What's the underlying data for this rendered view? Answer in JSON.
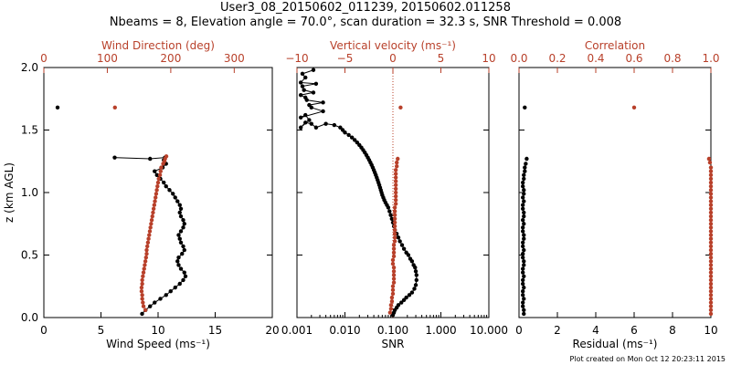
{
  "title": {
    "line1": "User3_08_20150602_011239, 20150602.011258",
    "line2": "Nbeams = 8, Elevation angle = 70.0°, scan duration = 32.3 s, SNR Threshold = 0.008"
  },
  "footer": "Plot created on Mon Oct 12 20:23:11 2015",
  "colors": {
    "red": "#b8402a",
    "black": "#000000"
  },
  "chart_data": [
    {
      "type": "line",
      "ylabel": "z (km AGL)",
      "ylim": [
        0,
        2.0
      ],
      "yticks": [
        "0.0",
        "0.5",
        "1.0",
        "1.5",
        "2.0"
      ],
      "yticks_values": [
        0,
        0.5,
        1.0,
        1.5,
        2.0
      ],
      "bottom_axis": {
        "label": "Wind Speed (ms⁻¹)",
        "range": [
          0,
          20
        ],
        "ticks": [
          "0",
          "5",
          "10",
          "15",
          "20"
        ],
        "tick_values": [
          0,
          5,
          10,
          15,
          20
        ]
      },
      "top_axis": {
        "label": "Wind Direction (deg)",
        "range": [
          0,
          360
        ],
        "ticks": [
          "0",
          "100",
          "200",
          "300"
        ],
        "tick_values": [
          0,
          100,
          200,
          300
        ]
      },
      "series": [
        {
          "axis": "bottom",
          "color": "black",
          "line": true,
          "x": [
            8.6,
            8.9,
            9.3,
            9.7,
            10.2,
            10.7,
            11.1,
            11.5,
            11.9,
            12.2,
            12.4,
            12.3,
            12.0,
            11.8,
            11.7,
            11.8,
            12.1,
            12.3,
            12.2,
            12.0,
            11.9,
            11.8,
            12.0,
            12.2,
            12.3,
            12.2,
            12.0,
            11.9,
            12.0,
            11.9,
            11.7,
            11.5,
            11.3,
            11.0,
            10.7,
            10.5,
            10.2,
            9.9,
            9.7,
            10.4,
            10.7,
            10.5,
            10.6,
            9.3,
            6.2
          ],
          "y": [
            0.03,
            0.06,
            0.09,
            0.12,
            0.15,
            0.18,
            0.21,
            0.24,
            0.27,
            0.3,
            0.33,
            0.36,
            0.39,
            0.42,
            0.45,
            0.48,
            0.51,
            0.54,
            0.57,
            0.6,
            0.63,
            0.66,
            0.69,
            0.72,
            0.75,
            0.78,
            0.81,
            0.84,
            0.87,
            0.9,
            0.93,
            0.96,
            0.99,
            1.02,
            1.05,
            1.08,
            1.11,
            1.14,
            1.17,
            1.2,
            1.23,
            1.26,
            1.28,
            1.27,
            1.28
          ]
        },
        {
          "axis": "bottom",
          "color": "black",
          "line": false,
          "x": [
            1.2
          ],
          "y": [
            1.68
          ]
        },
        {
          "axis": "top",
          "color": "red",
          "line": false,
          "x": [
            160,
            157,
            156,
            155,
            155,
            154,
            154,
            155,
            155,
            156,
            157,
            158,
            159,
            160,
            161,
            162,
            162,
            163,
            164,
            165,
            166,
            167,
            168,
            169,
            170,
            171,
            172,
            173,
            174,
            175,
            176,
            177,
            178,
            179,
            180,
            181,
            183,
            184,
            185,
            188,
            190,
            191,
            193
          ],
          "y": [
            0.06,
            0.09,
            0.12,
            0.15,
            0.18,
            0.21,
            0.24,
            0.27,
            0.3,
            0.33,
            0.36,
            0.39,
            0.42,
            0.45,
            0.48,
            0.51,
            0.54,
            0.57,
            0.6,
            0.63,
            0.66,
            0.69,
            0.72,
            0.75,
            0.78,
            0.81,
            0.84,
            0.87,
            0.9,
            0.93,
            0.96,
            0.99,
            1.02,
            1.05,
            1.08,
            1.11,
            1.14,
            1.17,
            1.2,
            1.23,
            1.25,
            1.27,
            1.29
          ]
        },
        {
          "axis": "top",
          "color": "red",
          "line": false,
          "x": [
            112
          ],
          "y": [
            1.68
          ]
        }
      ]
    },
    {
      "type": "line",
      "ylim": [
        0,
        2.0
      ],
      "bottom_axis": {
        "label": "SNR",
        "range": [
          0.001,
          10
        ],
        "scale": "log",
        "ticks": [
          "0.001",
          "0.010",
          "0.100",
          "1.000",
          "10.000"
        ],
        "tick_values": [
          0.001,
          0.01,
          0.1,
          1,
          10
        ]
      },
      "top_axis": {
        "label": "Vertical velocity (ms⁻¹)",
        "range": [
          -10,
          10
        ],
        "ticks": [
          "−10",
          "−5",
          "0",
          "5",
          "10"
        ],
        "tick_values": [
          -10,
          -5,
          0,
          5,
          10
        ]
      },
      "zero_line": {
        "axis": "top",
        "value": 0,
        "style": "dotted",
        "color": "red"
      },
      "series": [
        {
          "axis": "bottom",
          "color": "black",
          "line": true,
          "x": [
            0.1,
            0.105,
            0.11,
            0.12,
            0.13,
            0.15,
            0.17,
            0.19,
            0.22,
            0.25,
            0.28,
            0.3,
            0.31,
            0.31,
            0.3,
            0.29,
            0.27,
            0.25,
            0.23,
            0.21,
            0.19,
            0.17,
            0.155,
            0.14,
            0.13,
            0.12,
            0.11,
            0.105,
            0.1,
            0.095,
            0.09,
            0.085,
            0.08,
            0.075,
            0.07,
            0.066,
            0.063,
            0.06,
            0.058,
            0.056,
            0.054,
            0.052,
            0.05,
            0.048,
            0.046,
            0.044,
            0.042,
            0.04,
            0.038,
            0.036,
            0.034,
            0.032,
            0.03,
            0.028,
            0.026,
            0.024,
            0.022,
            0.02,
            0.018,
            0.016,
            0.014,
            0.012,
            0.01,
            0.009,
            0.008,
            0.006,
            0.004,
            0.0025,
            0.002,
            0.0015,
            0.0012,
            0.0018,
            0.0015,
            0.0012,
            0.0035,
            0.002,
            0.0018,
            0.0035,
            0.0016,
            0.0015,
            0.0012,
            0.0022,
            0.0014,
            0.0013,
            0.0025,
            0.0012,
            0.0015,
            0.0013,
            0.0022
          ],
          "y": [
            0.02,
            0.04,
            0.06,
            0.08,
            0.1,
            0.12,
            0.14,
            0.16,
            0.18,
            0.2,
            0.23,
            0.26,
            0.3,
            0.34,
            0.37,
            0.4,
            0.42,
            0.45,
            0.47,
            0.5,
            0.52,
            0.55,
            0.58,
            0.61,
            0.64,
            0.67,
            0.7,
            0.73,
            0.76,
            0.79,
            0.82,
            0.85,
            0.88,
            0.9,
            0.92,
            0.94,
            0.96,
            0.98,
            1.0,
            1.02,
            1.04,
            1.06,
            1.08,
            1.1,
            1.12,
            1.14,
            1.16,
            1.18,
            1.2,
            1.22,
            1.24,
            1.26,
            1.28,
            1.3,
            1.32,
            1.34,
            1.36,
            1.38,
            1.4,
            1.42,
            1.44,
            1.46,
            1.48,
            1.5,
            1.52,
            1.54,
            1.55,
            1.52,
            1.55,
            1.56,
            1.52,
            1.58,
            1.62,
            1.6,
            1.65,
            1.68,
            1.7,
            1.72,
            1.74,
            1.76,
            1.78,
            1.8,
            1.82,
            1.85,
            1.87,
            1.88,
            1.92,
            1.95,
            1.98
          ]
        },
        {
          "axis": "top",
          "color": "red",
          "line": false,
          "x": [
            -0.3,
            -0.2,
            -0.2,
            -0.1,
            -0.1,
            0.0,
            0.0,
            0.0,
            0.1,
            0.1,
            0.1,
            0.1,
            0.1,
            0.0,
            0.0,
            0.1,
            0.1,
            0.1,
            0.1,
            0.2,
            0.2,
            0.2,
            0.2,
            0.2,
            0.2,
            0.2,
            0.2,
            0.2,
            0.2,
            0.3,
            0.3,
            0.3,
            0.3,
            0.3,
            0.3,
            0.3,
            0.3,
            0.3,
            0.3,
            0.4,
            0.4,
            0.5
          ],
          "y": [
            0.04,
            0.07,
            0.1,
            0.13,
            0.16,
            0.19,
            0.22,
            0.25,
            0.28,
            0.31,
            0.34,
            0.37,
            0.4,
            0.43,
            0.46,
            0.49,
            0.52,
            0.55,
            0.58,
            0.61,
            0.64,
            0.67,
            0.7,
            0.73,
            0.76,
            0.79,
            0.82,
            0.85,
            0.88,
            0.91,
            0.94,
            0.97,
            1.0,
            1.03,
            1.06,
            1.09,
            1.12,
            1.15,
            1.18,
            1.21,
            1.24,
            1.27
          ]
        },
        {
          "axis": "top",
          "color": "red",
          "line": false,
          "x": [
            0.8
          ],
          "y": [
            1.68
          ]
        }
      ]
    },
    {
      "type": "line",
      "ylim": [
        0,
        2.0
      ],
      "bottom_axis": {
        "label": "Residual (ms⁻¹)",
        "range": [
          0,
          10
        ],
        "ticks": [
          "0",
          "2",
          "4",
          "6",
          "8",
          "10"
        ],
        "tick_values": [
          0,
          2,
          4,
          6,
          8,
          10
        ]
      },
      "top_axis": {
        "label": "Correlation",
        "range": [
          0,
          1
        ],
        "ticks": [
          "0.0",
          "0.2",
          "0.4",
          "0.6",
          "0.8",
          "1.0"
        ],
        "tick_values": [
          0,
          0.2,
          0.4,
          0.6,
          0.8,
          1.0
        ]
      },
      "series": [
        {
          "axis": "bottom",
          "color": "black",
          "line": false,
          "x": [
            0.25,
            0.25,
            0.2,
            0.2,
            0.25,
            0.2,
            0.2,
            0.25,
            0.2,
            0.2,
            0.25,
            0.2,
            0.2,
            0.25,
            0.25,
            0.2,
            0.2,
            0.25,
            0.2,
            0.2,
            0.25,
            0.25,
            0.2,
            0.2,
            0.25,
            0.2,
            0.25,
            0.25,
            0.2,
            0.2,
            0.25,
            0.2,
            0.25,
            0.25,
            0.2,
            0.2,
            0.25,
            0.25,
            0.3,
            0.3,
            0.35,
            0.4
          ],
          "y": [
            0.03,
            0.06,
            0.09,
            0.12,
            0.15,
            0.18,
            0.21,
            0.24,
            0.27,
            0.3,
            0.33,
            0.36,
            0.39,
            0.42,
            0.45,
            0.48,
            0.51,
            0.54,
            0.57,
            0.6,
            0.63,
            0.66,
            0.69,
            0.72,
            0.75,
            0.78,
            0.81,
            0.84,
            0.87,
            0.9,
            0.93,
            0.96,
            0.99,
            1.02,
            1.05,
            1.08,
            1.11,
            1.14,
            1.17,
            1.2,
            1.23,
            1.27
          ]
        },
        {
          "axis": "bottom",
          "color": "black",
          "line": false,
          "x": [
            0.3
          ],
          "y": [
            1.68
          ]
        },
        {
          "axis": "top",
          "color": "red",
          "line": false,
          "x": [
            1.0,
            1.0,
            1.0,
            1.0,
            1.0,
            1.0,
            1.0,
            1.0,
            1.0,
            1.0,
            1.0,
            1.0,
            1.0,
            1.0,
            1.0,
            1.0,
            1.0,
            1.0,
            1.0,
            1.0,
            1.0,
            1.0,
            1.0,
            1.0,
            1.0,
            1.0,
            1.0,
            1.0,
            1.0,
            1.0,
            1.0,
            1.0,
            1.0,
            1.0,
            1.0,
            1.0,
            1.0,
            1.0,
            1.0,
            1.0,
            0.995,
            0.99
          ],
          "y": [
            0.03,
            0.06,
            0.09,
            0.12,
            0.15,
            0.18,
            0.21,
            0.24,
            0.27,
            0.3,
            0.33,
            0.36,
            0.39,
            0.42,
            0.45,
            0.48,
            0.51,
            0.54,
            0.57,
            0.6,
            0.63,
            0.66,
            0.69,
            0.72,
            0.75,
            0.78,
            0.81,
            0.84,
            0.87,
            0.9,
            0.93,
            0.96,
            0.99,
            1.02,
            1.05,
            1.08,
            1.11,
            1.14,
            1.17,
            1.2,
            1.24,
            1.27
          ]
        },
        {
          "axis": "top",
          "color": "red",
          "line": false,
          "x": [
            0.6
          ],
          "y": [
            1.68
          ]
        }
      ]
    }
  ]
}
